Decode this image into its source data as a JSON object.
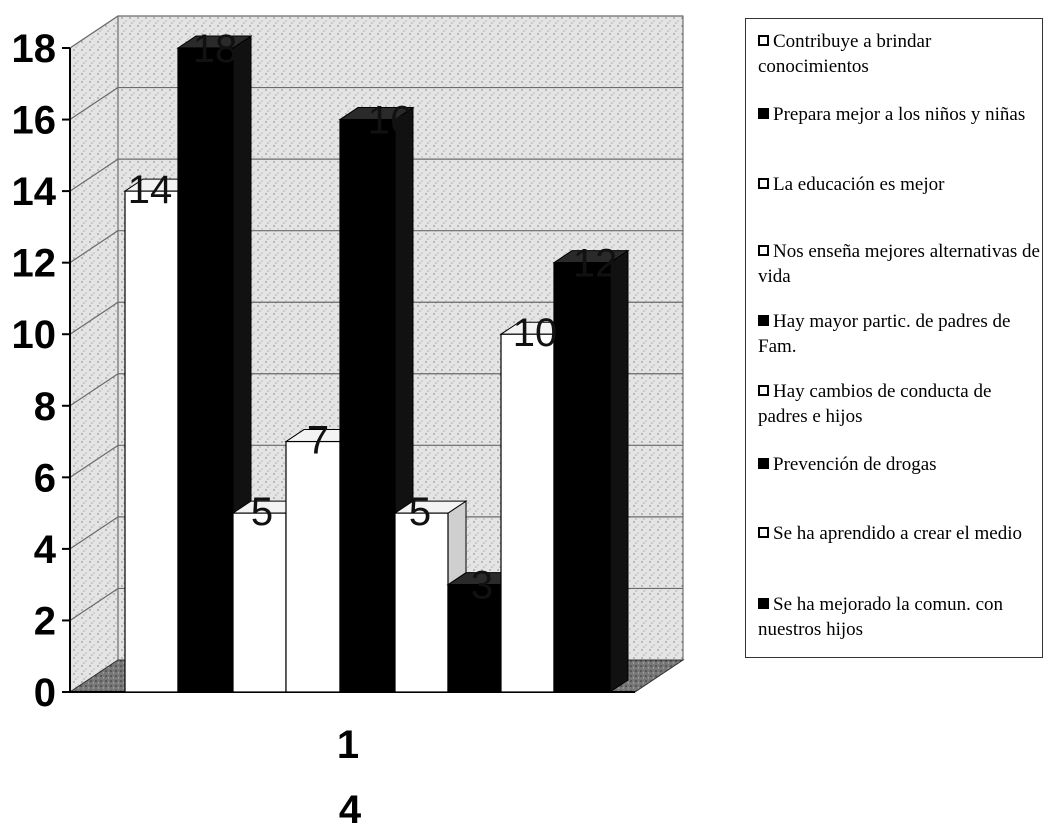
{
  "chart_data": {
    "type": "bar",
    "categories": [
      "1"
    ],
    "category_sublabel": "4",
    "ylim": [
      0,
      18
    ],
    "yticks": [
      "0",
      "2",
      "4",
      "6",
      "8",
      "10",
      "12",
      "14",
      "16",
      "18"
    ],
    "grid": true,
    "legend_position": "right",
    "colors": {
      "light": "#ffffff",
      "dark": "#000000"
    },
    "series": [
      {
        "name": "Contribuye a brindar conocimientos",
        "values": [
          14
        ],
        "color": "light"
      },
      {
        "name": "Prepara mejor a los niños y niñas",
        "values": [
          18
        ],
        "color": "dark"
      },
      {
        "name": "La educación es mejor",
        "values": [
          5
        ],
        "color": "light"
      },
      {
        "name": "Nos enseña mejores alternativas de vida",
        "values": [
          7
        ],
        "color": "light"
      },
      {
        "name": "Hay mayor partic. de padres de Fam.",
        "values": [
          16
        ],
        "color": "dark"
      },
      {
        "name": "Hay cambios de conducta de padres e hijos",
        "values": [
          5
        ],
        "color": "light"
      },
      {
        "name": "Prevención de drogas",
        "values": [
          3
        ],
        "color": "dark"
      },
      {
        "name": "Se ha aprendido a crear el medio",
        "values": [
          10
        ],
        "color": "light"
      },
      {
        "name": "Se ha mejorado la comun. con nuestros hijos",
        "values": [
          12
        ],
        "color": "dark"
      }
    ],
    "data_labels": [
      "14",
      "18",
      "5",
      "7",
      "16",
      "5",
      "3",
      "10",
      "12"
    ]
  }
}
